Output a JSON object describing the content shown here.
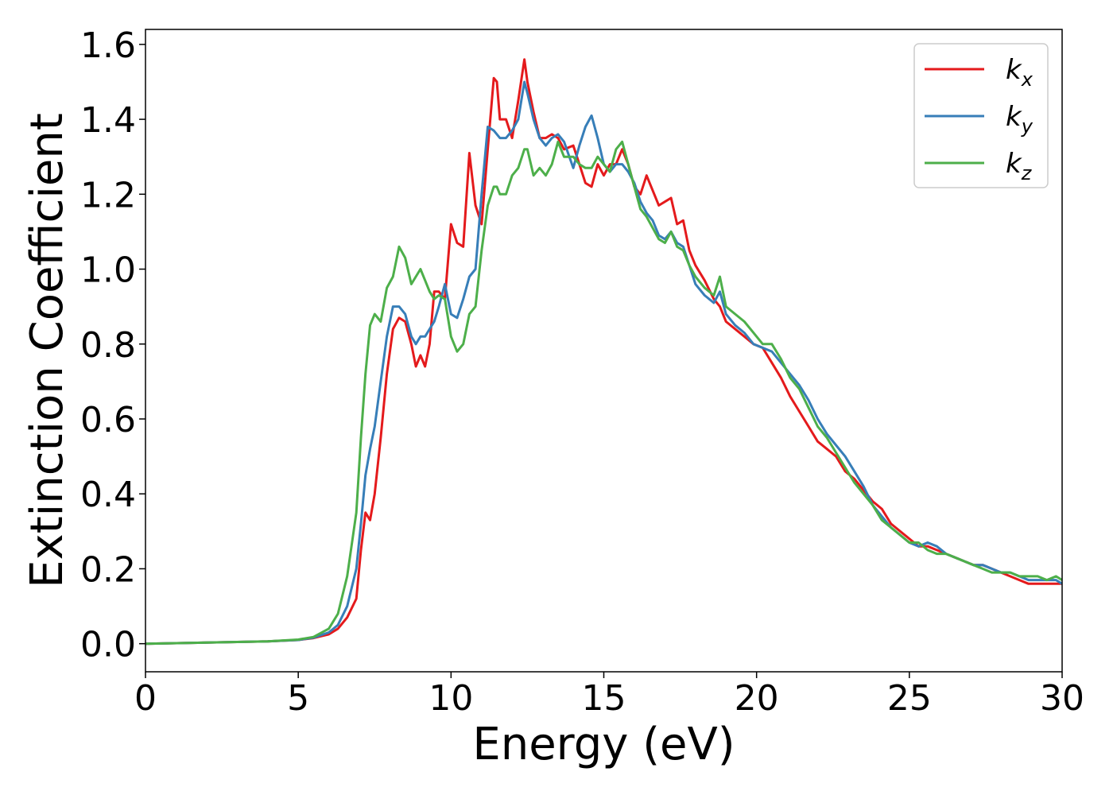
{
  "chart_data": {
    "type": "line",
    "title": "",
    "xlabel": "Energy (eV)",
    "ylabel": "Extinction Coefficient",
    "xlim": [
      0,
      30
    ],
    "ylim": [
      -0.075,
      1.64
    ],
    "xticks": [
      0,
      5,
      10,
      15,
      20,
      25,
      30
    ],
    "xtick_labels": [
      "0",
      "5",
      "10",
      "15",
      "20",
      "25",
      "30"
    ],
    "yticks": [
      0.0,
      0.2,
      0.4,
      0.6,
      0.8,
      1.0,
      1.2,
      1.4,
      1.6
    ],
    "ytick_labels": [
      "0.0",
      "0.2",
      "0.4",
      "0.6",
      "0.8",
      "1.0",
      "1.2",
      "1.4",
      "1.6"
    ],
    "grid": false,
    "legend_position": "top-right",
    "series": [
      {
        "name": "k_x",
        "label_main": "k",
        "label_sub": "x",
        "color": "#e41a1c",
        "x": [
          0,
          2,
          4,
          5,
          5.5,
          6,
          6.3,
          6.6,
          6.9,
          7.05,
          7.2,
          7.35,
          7.5,
          7.7,
          7.9,
          8.1,
          8.3,
          8.5,
          8.7,
          8.85,
          9.0,
          9.15,
          9.3,
          9.45,
          9.6,
          9.8,
          10.0,
          10.2,
          10.4,
          10.6,
          10.8,
          11.0,
          11.2,
          11.4,
          11.5,
          11.6,
          11.8,
          12.0,
          12.2,
          12.4,
          12.5,
          12.7,
          12.9,
          13.1,
          13.3,
          13.5,
          13.7,
          14.0,
          14.2,
          14.4,
          14.6,
          14.8,
          15.0,
          15.2,
          15.4,
          15.6,
          15.8,
          16.0,
          16.2,
          16.4,
          16.6,
          16.8,
          17.0,
          17.2,
          17.4,
          17.6,
          17.8,
          18.0,
          18.3,
          18.6,
          18.8,
          19.0,
          19.3,
          19.6,
          19.9,
          20.2,
          20.5,
          20.8,
          21.1,
          21.4,
          21.7,
          22.0,
          22.3,
          22.6,
          22.9,
          23.2,
          23.5,
          23.8,
          24.1,
          24.4,
          24.7,
          25.0,
          25.3,
          25.6,
          25.9,
          26.2,
          26.5,
          26.8,
          27.1,
          27.4,
          27.7,
          28.0,
          28.3,
          28.6,
          28.9,
          29.2,
          29.5,
          29.8,
          30.0
        ],
        "values": [
          0,
          0.003,
          0.006,
          0.01,
          0.015,
          0.025,
          0.04,
          0.07,
          0.12,
          0.25,
          0.35,
          0.33,
          0.4,
          0.55,
          0.72,
          0.84,
          0.87,
          0.86,
          0.8,
          0.74,
          0.77,
          0.74,
          0.8,
          0.94,
          0.94,
          0.92,
          1.12,
          1.07,
          1.06,
          1.31,
          1.17,
          1.12,
          1.32,
          1.51,
          1.5,
          1.4,
          1.4,
          1.35,
          1.45,
          1.56,
          1.5,
          1.42,
          1.35,
          1.35,
          1.36,
          1.35,
          1.32,
          1.33,
          1.28,
          1.23,
          1.22,
          1.28,
          1.25,
          1.28,
          1.28,
          1.32,
          1.28,
          1.22,
          1.2,
          1.25,
          1.21,
          1.17,
          1.18,
          1.19,
          1.12,
          1.13,
          1.05,
          1.01,
          0.97,
          0.92,
          0.9,
          0.86,
          0.84,
          0.82,
          0.8,
          0.79,
          0.75,
          0.71,
          0.66,
          0.62,
          0.58,
          0.54,
          0.52,
          0.5,
          0.46,
          0.44,
          0.41,
          0.38,
          0.36,
          0.32,
          0.3,
          0.28,
          0.26,
          0.26,
          0.25,
          0.24,
          0.23,
          0.22,
          0.21,
          0.21,
          0.2,
          0.19,
          0.18,
          0.17,
          0.16,
          0.16,
          0.16,
          0.16,
          0.16
        ]
      },
      {
        "name": "k_y",
        "label_main": "k",
        "label_sub": "y",
        "color": "#377eb8",
        "x": [
          0,
          2,
          4,
          5,
          5.5,
          6,
          6.3,
          6.6,
          6.9,
          7.05,
          7.2,
          7.35,
          7.5,
          7.7,
          7.9,
          8.1,
          8.3,
          8.5,
          8.7,
          8.85,
          9.0,
          9.15,
          9.3,
          9.45,
          9.6,
          9.8,
          10.0,
          10.2,
          10.4,
          10.6,
          10.8,
          11.0,
          11.2,
          11.4,
          11.5,
          11.6,
          11.8,
          12.0,
          12.2,
          12.4,
          12.5,
          12.7,
          12.9,
          13.1,
          13.3,
          13.5,
          13.7,
          14.0,
          14.2,
          14.4,
          14.6,
          14.8,
          15.0,
          15.2,
          15.4,
          15.6,
          15.8,
          16.0,
          16.2,
          16.4,
          16.6,
          16.8,
          17.0,
          17.2,
          17.4,
          17.6,
          17.8,
          18.0,
          18.3,
          18.6,
          18.8,
          19.0,
          19.3,
          19.6,
          19.9,
          20.2,
          20.5,
          20.8,
          21.1,
          21.4,
          21.7,
          22.0,
          22.3,
          22.6,
          22.9,
          23.2,
          23.5,
          23.8,
          24.1,
          24.4,
          24.7,
          25.0,
          25.3,
          25.6,
          25.9,
          26.2,
          26.5,
          26.8,
          27.1,
          27.4,
          27.7,
          28.0,
          28.3,
          28.6,
          28.9,
          29.2,
          29.5,
          29.8,
          30.0
        ],
        "values": [
          0,
          0.003,
          0.006,
          0.01,
          0.016,
          0.03,
          0.05,
          0.1,
          0.2,
          0.32,
          0.45,
          0.52,
          0.58,
          0.7,
          0.82,
          0.9,
          0.9,
          0.88,
          0.82,
          0.8,
          0.82,
          0.82,
          0.84,
          0.86,
          0.9,
          0.96,
          0.88,
          0.87,
          0.92,
          0.98,
          1.0,
          1.2,
          1.38,
          1.37,
          1.36,
          1.35,
          1.35,
          1.37,
          1.4,
          1.5,
          1.47,
          1.4,
          1.35,
          1.33,
          1.35,
          1.36,
          1.34,
          1.27,
          1.33,
          1.38,
          1.41,
          1.35,
          1.28,
          1.26,
          1.28,
          1.28,
          1.26,
          1.23,
          1.18,
          1.15,
          1.13,
          1.09,
          1.08,
          1.1,
          1.07,
          1.06,
          1.01,
          0.96,
          0.93,
          0.91,
          0.94,
          0.88,
          0.85,
          0.83,
          0.8,
          0.79,
          0.78,
          0.75,
          0.72,
          0.69,
          0.65,
          0.6,
          0.56,
          0.53,
          0.5,
          0.46,
          0.42,
          0.37,
          0.34,
          0.31,
          0.29,
          0.27,
          0.26,
          0.27,
          0.26,
          0.24,
          0.23,
          0.22,
          0.21,
          0.21,
          0.2,
          0.19,
          0.19,
          0.18,
          0.17,
          0.17,
          0.17,
          0.17,
          0.16
        ]
      },
      {
        "name": "k_z",
        "label_main": "k",
        "label_sub": "z",
        "color": "#4daf4a",
        "x": [
          0,
          2,
          4,
          5,
          5.5,
          6,
          6.3,
          6.6,
          6.9,
          7.05,
          7.2,
          7.35,
          7.5,
          7.7,
          7.9,
          8.1,
          8.3,
          8.5,
          8.7,
          8.85,
          9.0,
          9.15,
          9.3,
          9.45,
          9.6,
          9.8,
          10.0,
          10.2,
          10.4,
          10.6,
          10.8,
          11.0,
          11.2,
          11.4,
          11.5,
          11.6,
          11.8,
          12.0,
          12.2,
          12.4,
          12.5,
          12.7,
          12.9,
          13.1,
          13.3,
          13.5,
          13.7,
          14.0,
          14.2,
          14.4,
          14.6,
          14.8,
          15.0,
          15.2,
          15.4,
          15.6,
          15.8,
          16.0,
          16.2,
          16.4,
          16.6,
          16.8,
          17.0,
          17.2,
          17.4,
          17.6,
          17.8,
          18.0,
          18.3,
          18.6,
          18.8,
          19.0,
          19.3,
          19.6,
          19.9,
          20.2,
          20.5,
          20.8,
          21.1,
          21.4,
          21.7,
          22.0,
          22.3,
          22.6,
          22.9,
          23.2,
          23.5,
          23.8,
          24.1,
          24.4,
          24.7,
          25.0,
          25.3,
          25.6,
          25.9,
          26.2,
          26.5,
          26.8,
          27.1,
          27.4,
          27.7,
          28.0,
          28.3,
          28.6,
          28.9,
          29.2,
          29.5,
          29.8,
          30.0
        ],
        "values": [
          0,
          0.003,
          0.006,
          0.011,
          0.018,
          0.04,
          0.08,
          0.18,
          0.35,
          0.55,
          0.72,
          0.85,
          0.88,
          0.86,
          0.95,
          0.98,
          1.06,
          1.03,
          0.96,
          0.98,
          1.0,
          0.97,
          0.94,
          0.92,
          0.93,
          0.92,
          0.82,
          0.78,
          0.8,
          0.88,
          0.9,
          1.05,
          1.17,
          1.22,
          1.22,
          1.2,
          1.2,
          1.25,
          1.27,
          1.32,
          1.32,
          1.25,
          1.27,
          1.25,
          1.28,
          1.34,
          1.3,
          1.3,
          1.28,
          1.27,
          1.27,
          1.3,
          1.28,
          1.26,
          1.32,
          1.34,
          1.28,
          1.22,
          1.16,
          1.14,
          1.11,
          1.08,
          1.07,
          1.1,
          1.06,
          1.05,
          1.01,
          0.98,
          0.95,
          0.93,
          0.98,
          0.9,
          0.88,
          0.86,
          0.83,
          0.8,
          0.8,
          0.76,
          0.71,
          0.68,
          0.63,
          0.58,
          0.55,
          0.51,
          0.47,
          0.43,
          0.4,
          0.37,
          0.33,
          0.31,
          0.29,
          0.27,
          0.27,
          0.25,
          0.24,
          0.24,
          0.23,
          0.22,
          0.21,
          0.2,
          0.19,
          0.19,
          0.19,
          0.18,
          0.18,
          0.18,
          0.17,
          0.18,
          0.17
        ]
      }
    ]
  }
}
